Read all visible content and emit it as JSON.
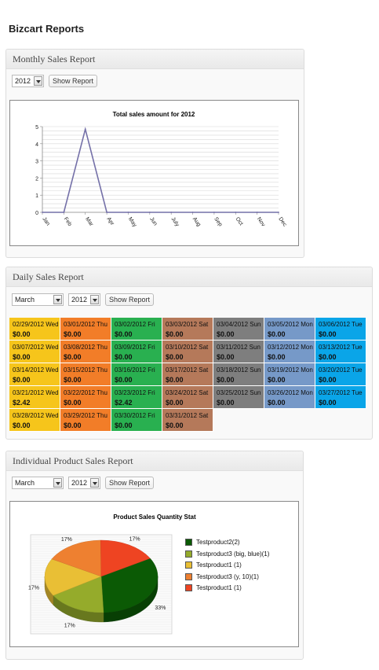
{
  "page": {
    "title": "Bizcart Reports"
  },
  "monthly": {
    "heading": "Monthly Sales Report",
    "year": "2012",
    "button": "Show Report",
    "chart_data": {
      "type": "line",
      "title": "Total sales amount for 2012",
      "categories": [
        "Jan",
        "Feb",
        "Mar",
        "Apr",
        "May",
        "Jun",
        "July",
        "Aug",
        "Sep",
        "Oct",
        "Nov",
        "Dec"
      ],
      "values": [
        0,
        0,
        4.85,
        0,
        0,
        0,
        0,
        0,
        0,
        0,
        0,
        0
      ],
      "yticks": [
        "0",
        "1",
        "2",
        "3",
        "4",
        "5"
      ],
      "ylim": [
        0,
        5
      ],
      "grid": true,
      "colors": {
        "line": "#7470a8",
        "grid": "#d8d8d8"
      }
    }
  },
  "daily": {
    "heading": "Daily Sales Report",
    "month": "March",
    "year": "2012",
    "button": "Show Report",
    "rows": [
      [
        {
          "d": "02/29/2012 Wed",
          "a": "$0.00",
          "c": "wed"
        },
        {
          "d": "03/01/2012 Thu",
          "a": "$0.00",
          "c": "thu"
        },
        {
          "d": "03/02/2012 Fri",
          "a": "$0.00",
          "c": "fri"
        },
        {
          "d": "03/03/2012 Sat",
          "a": "$0.00",
          "c": "sat"
        },
        {
          "d": "03/04/2012 Sun",
          "a": "$0.00",
          "c": "sun"
        },
        {
          "d": "03/05/2012 Mon",
          "a": "$0.00",
          "c": "mon"
        },
        {
          "d": "03/06/2012 Tue",
          "a": "$0.00",
          "c": "tue"
        }
      ],
      [
        {
          "d": "03/07/2012 Wed",
          "a": "$0.00",
          "c": "wed"
        },
        {
          "d": "03/08/2012 Thu",
          "a": "$0.00",
          "c": "thu"
        },
        {
          "d": "03/09/2012 Fri",
          "a": "$0.00",
          "c": "fri"
        },
        {
          "d": "03/10/2012 Sat",
          "a": "$0.00",
          "c": "sat"
        },
        {
          "d": "03/11/2012 Sun",
          "a": "$0.00",
          "c": "sun"
        },
        {
          "d": "03/12/2012 Mon",
          "a": "$0.00",
          "c": "mon"
        },
        {
          "d": "03/13/2012 Tue",
          "a": "$0.00",
          "c": "tue"
        }
      ],
      [
        {
          "d": "03/14/2012 Wed",
          "a": "$0.00",
          "c": "wed"
        },
        {
          "d": "03/15/2012 Thu",
          "a": "$0.00",
          "c": "thu"
        },
        {
          "d": "03/16/2012 Fri",
          "a": "$0.00",
          "c": "fri"
        },
        {
          "d": "03/17/2012 Sat",
          "a": "$0.00",
          "c": "sat"
        },
        {
          "d": "03/18/2012 Sun",
          "a": "$0.00",
          "c": "sun"
        },
        {
          "d": "03/19/2012 Mon",
          "a": "$0.00",
          "c": "mon"
        },
        {
          "d": "03/20/2012 Tue",
          "a": "$0.00",
          "c": "tue"
        }
      ],
      [
        {
          "d": "03/21/2012 Wed",
          "a": "$2.42",
          "c": "wed"
        },
        {
          "d": "03/22/2012 Thu",
          "a": "$0.00",
          "c": "thu"
        },
        {
          "d": "03/23/2012 Fri",
          "a": "$2.42",
          "c": "fri"
        },
        {
          "d": "03/24/2012 Sat",
          "a": "$0.00",
          "c": "sat"
        },
        {
          "d": "03/25/2012 Sun",
          "a": "$0.00",
          "c": "sun"
        },
        {
          "d": "03/26/2012 Mon",
          "a": "$0.00",
          "c": "mon"
        },
        {
          "d": "03/27/2012 Tue",
          "a": "$0.00",
          "c": "tue"
        }
      ],
      [
        {
          "d": "03/28/2012 Wed",
          "a": "$0.00",
          "c": "wed"
        },
        {
          "d": "03/29/2012 Thu",
          "a": "$0.00",
          "c": "thu"
        },
        {
          "d": "03/30/2012 Fri",
          "a": "$0.00",
          "c": "fri"
        },
        {
          "d": "03/31/2012 Sat",
          "a": "$0.00",
          "c": "sat"
        }
      ]
    ]
  },
  "product": {
    "heading": "Individual Product Sales Report",
    "month": "March",
    "year": "2012",
    "button": "Show Report",
    "chart_data": {
      "type": "pie",
      "title": "Product Sales Quantity Stat",
      "slices": [
        {
          "label": "Testproduct2(2)",
          "value": 33,
          "pct": "33%",
          "color": "#0b5a05"
        },
        {
          "label": "Testproduct3 (big, blue)(1)",
          "value": 17,
          "pct": "17%",
          "color": "#95ab2b"
        },
        {
          "label": "Testproduct1 (1)",
          "value": 17,
          "pct": "17%",
          "color": "#e9bf35"
        },
        {
          "label": "Testproduct3 (y, 10)(1)",
          "value": 17,
          "pct": "17%",
          "color": "#ee8030"
        },
        {
          "label": "Testproduct1 (1)",
          "value": 17,
          "pct": "17%",
          "color": "#ee4422"
        }
      ]
    }
  }
}
